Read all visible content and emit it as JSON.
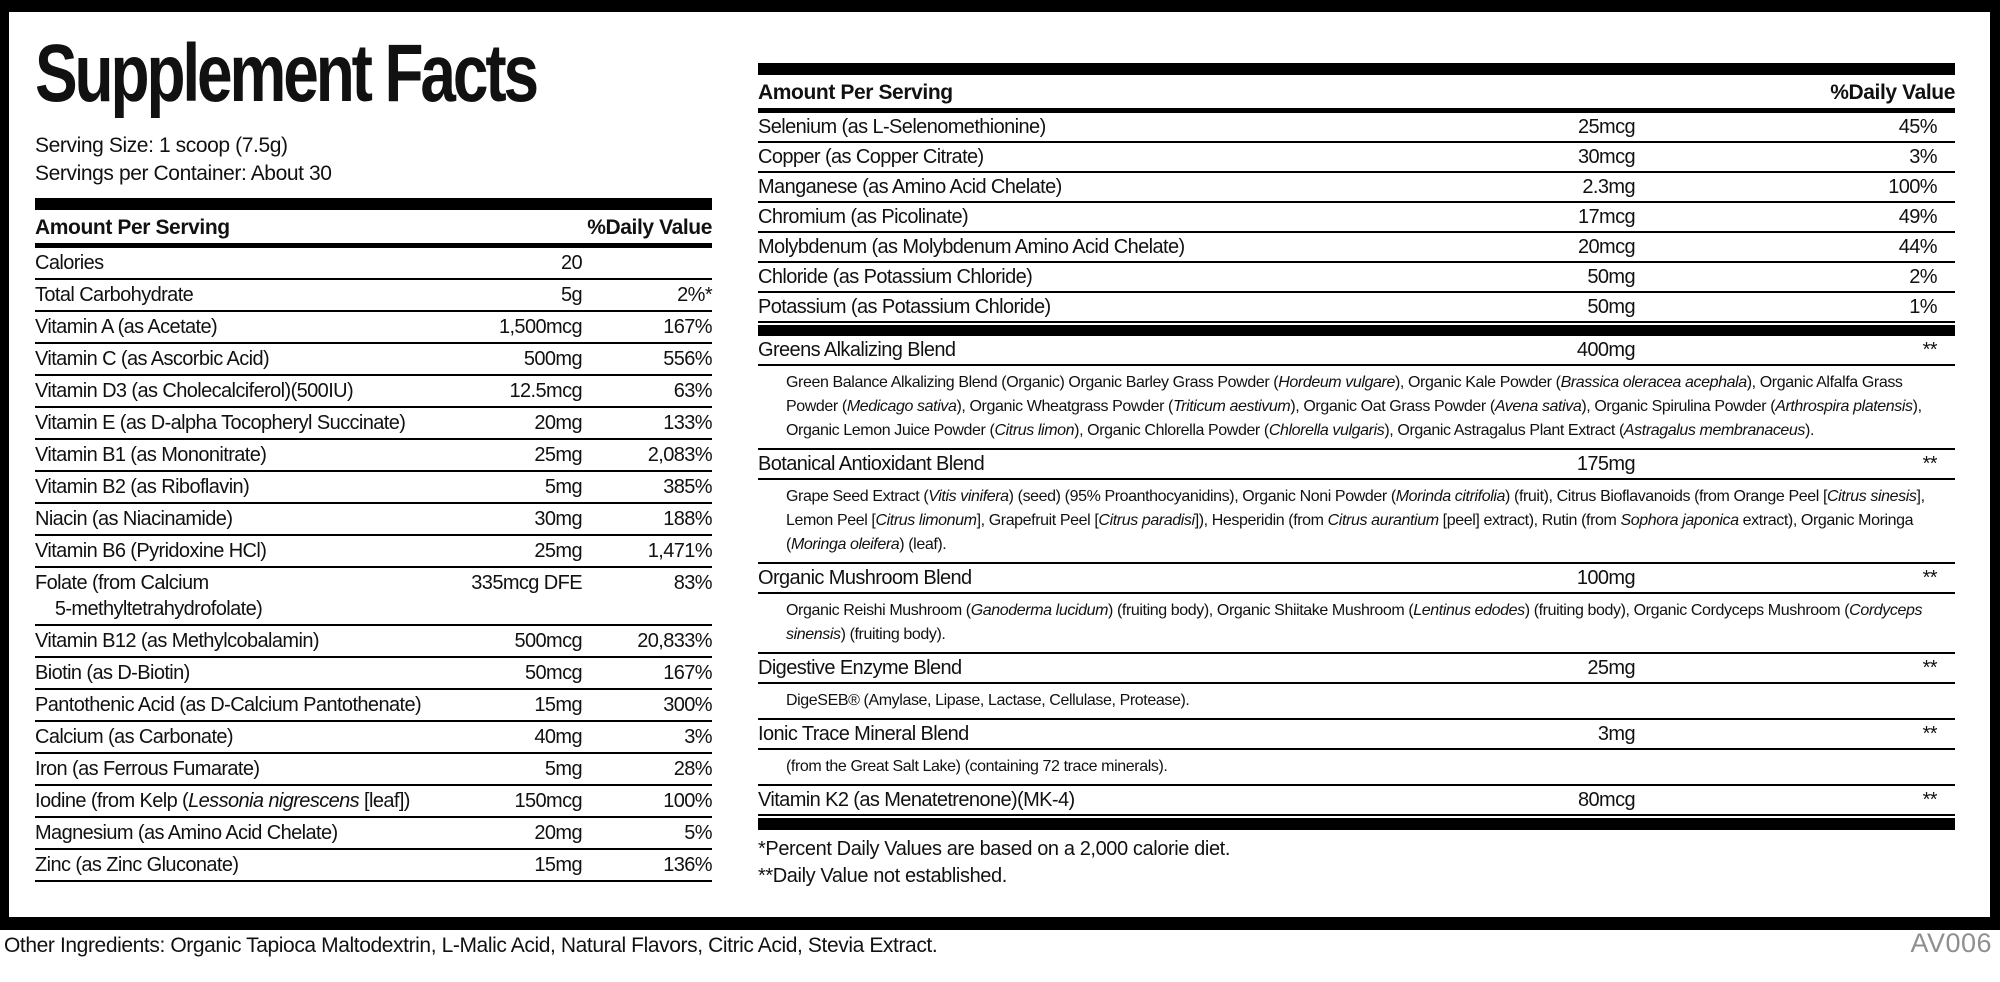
{
  "label": {
    "title": "Supplement Facts",
    "serving_size": "Serving Size: 1 scoop (7.5g)",
    "servings_per_container": "Servings per Container: About 30",
    "column_headers": {
      "amount": "Amount Per Serving",
      "daily_value": "%Daily Value"
    },
    "left_table_rows": [
      {
        "name": "Calories",
        "amount": "20",
        "dv": ""
      },
      {
        "name": "Total Carbohydrate",
        "amount": "5g",
        "dv": "2%*"
      },
      {
        "name": "Vitamin A (as Acetate)",
        "amount": "1,500mcg",
        "dv": "167%"
      },
      {
        "name": "Vitamin C (as Ascorbic Acid)",
        "amount": "500mg",
        "dv": "556%"
      },
      {
        "name": "Vitamin D3 (as Cholecalciferol)(500IU)",
        "amount": "12.5mcg",
        "dv": "63%"
      },
      {
        "name": "Vitamin E (as D-alpha Tocopheryl Succinate)",
        "amount": "20mg",
        "dv": "133%"
      },
      {
        "name": "Vitamin B1 (as Mononitrate)",
        "amount": "25mg",
        "dv": "2,083%"
      },
      {
        "name": "Vitamin B2 (as Riboflavin)",
        "amount": "5mg",
        "dv": "385%"
      },
      {
        "name": "Niacin (as Niacinamide)",
        "amount": "30mg",
        "dv": "188%"
      },
      {
        "name": "Vitamin B6 (Pyridoxine HCl)",
        "amount": "25mg",
        "dv": "1,471%"
      },
      {
        "name": "Folate (from Calcium\n    5-methyltetrahydrofolate)",
        "amount": "335mcg DFE",
        "dv": "83%"
      },
      {
        "name": "Vitamin B12 (as Methylcobalamin)",
        "amount": "500mcg",
        "dv": "20,833%"
      },
      {
        "name": "Biotin (as D-Biotin)",
        "amount": "50mcg",
        "dv": "167%"
      },
      {
        "name": "Pantothenic Acid (as D-Calcium Pantothenate)",
        "amount": "15mg",
        "dv": "300%"
      },
      {
        "name": "Calcium (as Carbonate)",
        "amount": "40mg",
        "dv": "3%"
      },
      {
        "name": "Iron (as Ferrous Fumarate)",
        "amount": "5mg",
        "dv": "28%"
      },
      {
        "name": "Iodine (from Kelp (*Lessonia nigrescens* [leaf])",
        "amount": "150mcg",
        "dv": "100%"
      },
      {
        "name": "Magnesium (as Amino Acid Chelate)",
        "amount": "20mg",
        "dv": "5%"
      },
      {
        "name": "Zinc (as Zinc Gluconate)",
        "amount": "15mg",
        "dv": "136%"
      }
    ],
    "right_table_rows": [
      {
        "name": "Selenium (as L-Selenomethionine)",
        "amount": "25mcg",
        "dv": "45%"
      },
      {
        "name": "Copper (as Copper Citrate)",
        "amount": "30mcg",
        "dv": "3%"
      },
      {
        "name": "Manganese (as Amino Acid Chelate)",
        "amount": "2.3mg",
        "dv": "100%"
      },
      {
        "name": "Chromium (as Picolinate)",
        "amount": "17mcg",
        "dv": "49%"
      },
      {
        "name": "Molybdenum (as Molybdenum Amino Acid Chelate)",
        "amount": "20mcg",
        "dv": "44%"
      },
      {
        "name": "Chloride (as Potassium Chloride)",
        "amount": "50mg",
        "dv": "2%"
      },
      {
        "name": "Potassium (as Potassium Chloride)",
        "amount": "50mg",
        "dv": "1%"
      }
    ],
    "blends": [
      {
        "name": "Greens Alkalizing Blend",
        "amount": "400mg",
        "dv": "**",
        "desc": "Green Balance Alkalizing Blend (Organic) Organic Barley Grass Powder (*Hordeum vulgare*), Organic Kale Powder (*Brassica oleracea acephala*), Organic Alfalfa Grass Powder (*Medicago sativa*), Organic Wheatgrass Powder (*Triticum aestivum*), Organic Oat Grass Powder (*Avena sativa*), Organic Spirulina Powder (*Arthrospira platensis*), Organic Lemon Juice Powder (*Citrus limon*), Organic Chlorella Powder (*Chlorella vulgaris*), Organic Astragalus Plant Extract (*Astragalus membranaceus*)."
      },
      {
        "name": "Botanical Antioxidant Blend",
        "amount": "175mg",
        "dv": "**",
        "desc": "Grape Seed Extract (*Vitis vinifera*) (seed) (95% Proanthocyanidins), Organic Noni Powder (*Morinda citrifolia*) (fruit), Citrus Bioflavanoids (from Orange Peel [*Citrus sinesis*], Lemon Peel [*Citrus limonum*], Grapefruit Peel [*Citrus paradisi*]), Hesperidin (from *Citrus aurantium* [peel] extract), Rutin (from *Sophora japonica* extract), Organic Moringa (*Moringa oleifera*) (leaf)."
      },
      {
        "name": "Organic Mushroom Blend",
        "amount": "100mg",
        "dv": "**",
        "desc": "Organic Reishi Mushroom (*Ganoderma lucidum*) (fruiting body), Organic Shiitake Mushroom (*Lentinus edodes*) (fruiting body), Organic Cordyceps Mushroom (*Cordyceps sinensis*) (fruiting body)."
      },
      {
        "name": "Digestive Enzyme Blend",
        "amount": "25mg",
        "dv": "**",
        "desc": "DigeSEB® (Amylase, Lipase, Lactase, Cellulase, Protease)."
      },
      {
        "name": "Ionic Trace Mineral Blend",
        "amount": "3mg",
        "dv": "**",
        "desc": "(from the Great Salt Lake) (containing 72 trace minerals)."
      },
      {
        "name": "Vitamin K2 (as Menatetrenone)(MK-4)",
        "amount": "80mcg",
        "dv": "**",
        "desc": ""
      }
    ],
    "footnotes": [
      "*Percent Daily Values are based on a 2,000 calorie diet.",
      "**Daily Value not established."
    ],
    "other_ingredients": "Other Ingredients: Organic Tapioca Maltodextrin, L-Malic Acid, Natural Flavors, Citric Acid, Stevia Extract.",
    "product_code": "AV006"
  },
  "colors": {
    "text": "#111111",
    "bars": "#000000",
    "background": "#ffffff",
    "product_code_gray": "#8f8f8f"
  }
}
